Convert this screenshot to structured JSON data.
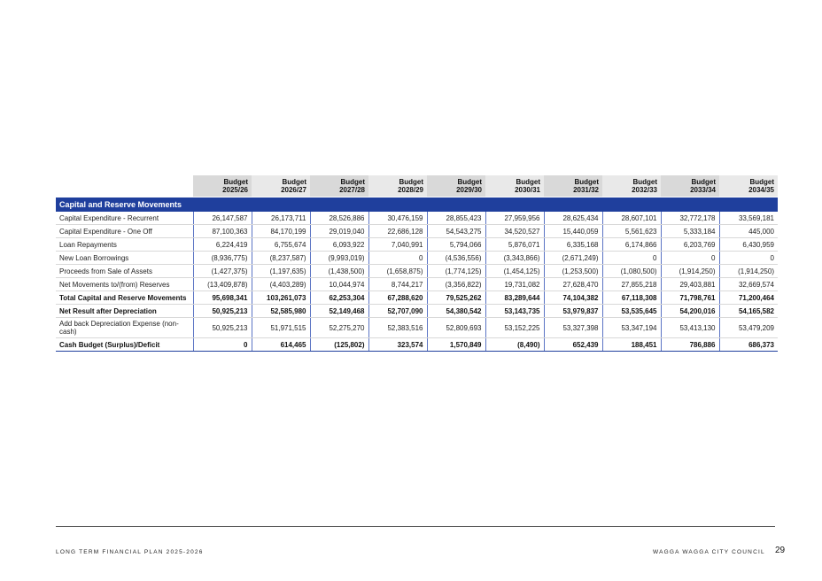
{
  "table": {
    "years": [
      [
        "Budget",
        "2025/26"
      ],
      [
        "Budget",
        "2026/27"
      ],
      [
        "Budget",
        "2027/28"
      ],
      [
        "Budget",
        "2028/29"
      ],
      [
        "Budget",
        "2029/30"
      ],
      [
        "Budget",
        "2030/31"
      ],
      [
        "Budget",
        "2031/32"
      ],
      [
        "Budget",
        "2032/33"
      ],
      [
        "Budget",
        "2033/34"
      ],
      [
        "Budget",
        "2034/35"
      ]
    ],
    "section_title": "Capital and Reserve Movements",
    "rows": [
      {
        "label": "Capital Expenditure - Recurrent",
        "bold": false,
        "tall": false,
        "values": [
          "26,147,587",
          "26,173,711",
          "28,526,886",
          "30,476,159",
          "28,855,423",
          "27,959,956",
          "28,625,434",
          "28,607,101",
          "32,772,178",
          "33,569,181"
        ]
      },
      {
        "label": "Capital Expenditure - One Off",
        "bold": false,
        "tall": false,
        "values": [
          "87,100,363",
          "84,170,199",
          "29,019,040",
          "22,686,128",
          "54,543,275",
          "34,520,527",
          "15,440,059",
          "5,561,623",
          "5,333,184",
          "445,000"
        ]
      },
      {
        "label": "Loan Repayments",
        "bold": false,
        "tall": false,
        "values": [
          "6,224,419",
          "6,755,674",
          "6,093,922",
          "7,040,991",
          "5,794,066",
          "5,876,071",
          "6,335,168",
          "6,174,866",
          "6,203,769",
          "6,430,959"
        ]
      },
      {
        "label": "New Loan Borrowings",
        "bold": false,
        "tall": false,
        "values": [
          "(8,936,775)",
          "(8,237,587)",
          "(9,993,019)",
          "0",
          "(4,536,556)",
          "(3,343,866)",
          "(2,671,249)",
          "0",
          "0",
          "0"
        ]
      },
      {
        "label": "Proceeds from Sale of Assets",
        "bold": false,
        "tall": false,
        "values": [
          "(1,427,375)",
          "(1,197,635)",
          "(1,438,500)",
          "(1,658,875)",
          "(1,774,125)",
          "(1,454,125)",
          "(1,253,500)",
          "(1,080,500)",
          "(1,914,250)",
          "(1,914,250)"
        ]
      },
      {
        "label": "Net Movements to/(from) Reserves",
        "bold": false,
        "tall": false,
        "values": [
          "(13,409,878)",
          "(4,403,289)",
          "10,044,974",
          "8,744,217",
          "(3,356,822)",
          "19,731,082",
          "27,628,470",
          "27,855,218",
          "29,403,881",
          "32,669,574"
        ]
      },
      {
        "label": "Total Capital and Reserve Movements",
        "bold": true,
        "tall": false,
        "values": [
          "95,698,341",
          "103,261,073",
          "62,253,304",
          "67,288,620",
          "79,525,262",
          "83,289,644",
          "74,104,382",
          "67,118,308",
          "71,798,761",
          "71,200,464"
        ]
      },
      {
        "label": "Net Result after Depreciation",
        "bold": true,
        "tall": false,
        "values": [
          "50,925,213",
          "52,585,980",
          "52,149,468",
          "52,707,090",
          "54,380,542",
          "53,143,735",
          "53,979,837",
          "53,535,645",
          "54,200,016",
          "54,165,582"
        ]
      },
      {
        "label": "Add back Depreciation Expense (non-cash)",
        "bold": false,
        "tall": true,
        "values": [
          "50,925,213",
          "51,971,515",
          "52,275,270",
          "52,383,516",
          "52,809,693",
          "53,152,225",
          "53,327,398",
          "53,347,194",
          "53,413,130",
          "53,479,209"
        ]
      },
      {
        "label": "Cash Budget (Surplus)/Deficit",
        "bold": true,
        "tall": false,
        "values": [
          "0",
          "614,465",
          "(125,802)",
          "323,574",
          "1,570,849",
          "(8,490)",
          "652,439",
          "188,451",
          "786,886",
          "686,373"
        ]
      }
    ]
  },
  "footer": {
    "left": "LONG TERM FINANCIAL PLAN 2025-2026",
    "right": "WAGGA WAGGA CITY COUNCIL",
    "page_number": "29"
  },
  "colors": {
    "section_header": "#1f3f9d",
    "column_divider": "#5b74c4"
  }
}
